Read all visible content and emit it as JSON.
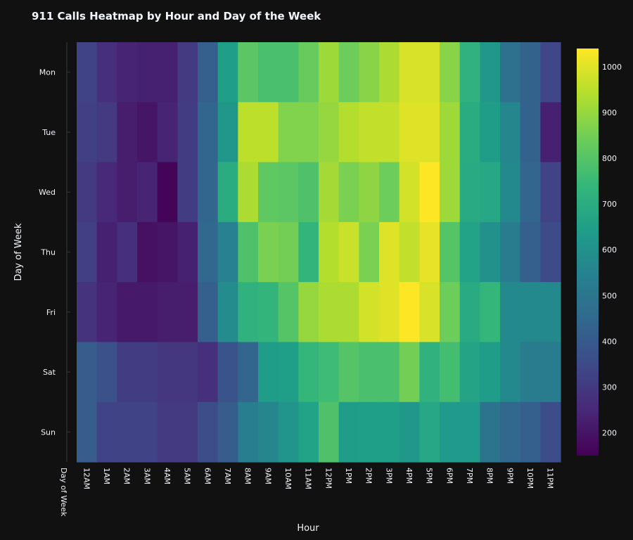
{
  "chart_data": {
    "type": "heatmap",
    "title": "911 Calls Heatmap by Hour and Day of the Week",
    "xlabel": "Hour",
    "ylabel": "Day of Week",
    "x_corner_label": "Day of Week",
    "x_categories": [
      "12AM",
      "1AM",
      "2AM",
      "3AM",
      "4AM",
      "5AM",
      "6AM",
      "7AM",
      "8AM",
      "9AM",
      "10AM",
      "11AM",
      "12PM",
      "1PM",
      "2PM",
      "3PM",
      "4PM",
      "5PM",
      "6PM",
      "7PM",
      "8PM",
      "9PM",
      "10PM",
      "11PM"
    ],
    "y_categories": [
      "Mon",
      "Tue",
      "Wed",
      "Thu",
      "Fri",
      "Sat",
      "Sun"
    ],
    "values": [
      [
        330,
        270,
        240,
        230,
        230,
        300,
        420,
        650,
        810,
        780,
        780,
        830,
        910,
        840,
        880,
        930,
        990,
        990,
        880,
        720,
        620,
        480,
        430,
        340
      ],
      [
        320,
        300,
        220,
        200,
        240,
        310,
        440,
        620,
        950,
        950,
        870,
        870,
        900,
        940,
        960,
        960,
        1000,
        1000,
        910,
        700,
        640,
        560,
        430,
        230
      ],
      [
        300,
        250,
        220,
        240,
        160,
        310,
        440,
        700,
        930,
        820,
        810,
        790,
        920,
        860,
        890,
        840,
        980,
        1040,
        910,
        690,
        680,
        570,
        440,
        330
      ],
      [
        320,
        230,
        270,
        190,
        200,
        230,
        450,
        540,
        790,
        860,
        850,
        730,
        940,
        970,
        860,
        1000,
        960,
        1010,
        800,
        660,
        600,
        520,
        420,
        350
      ],
      [
        280,
        240,
        210,
        210,
        220,
        220,
        420,
        580,
        720,
        730,
        800,
        900,
        930,
        930,
        980,
        1000,
        1040,
        990,
        840,
        690,
        740,
        570,
        570,
        570
      ],
      [
        410,
        370,
        310,
        310,
        290,
        290,
        270,
        380,
        440,
        640,
        650,
        740,
        760,
        800,
        780,
        780,
        850,
        720,
        770,
        670,
        640,
        570,
        520,
        520
      ],
      [
        410,
        330,
        330,
        330,
        300,
        300,
        360,
        410,
        530,
        560,
        610,
        660,
        790,
        640,
        650,
        650,
        620,
        680,
        630,
        630,
        490,
        450,
        420,
        360
      ]
    ],
    "zmin": 150,
    "zmax": 1040,
    "colorscale": "viridis",
    "colorbar_ticks": [
      200,
      300,
      400,
      500,
      600,
      700,
      800,
      900,
      1000
    ]
  }
}
